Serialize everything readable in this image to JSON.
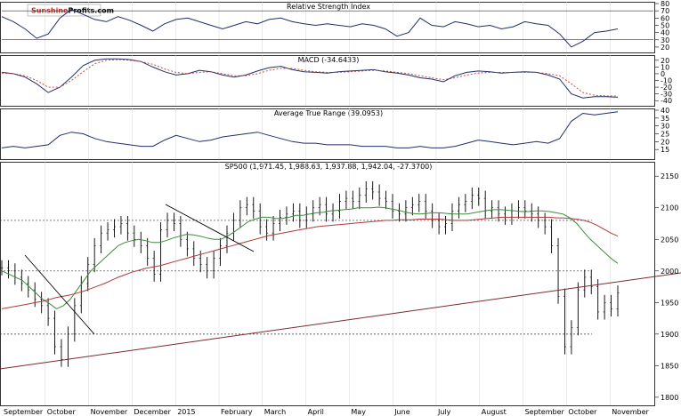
{
  "logo": {
    "part1": "Sunshine",
    "part2": "Profits.com"
  },
  "months": [
    "September",
    "October",
    "November",
    "December",
    "2015",
    "February",
    "March",
    "April",
    "May",
    "June",
    "July",
    "August",
    "September",
    "October",
    "November"
  ],
  "chart_data": [
    {
      "type": "line",
      "title": "Relative Strength Index",
      "ylim": [
        15,
        80
      ],
      "y_ticks": [
        20,
        30,
        40,
        50,
        60,
        70,
        80
      ],
      "reference_lines": [
        30,
        70
      ],
      "series": [
        {
          "values": [
            62,
            55,
            45,
            32,
            38,
            60,
            72,
            65,
            58,
            55,
            62,
            57,
            50,
            42,
            52,
            58,
            60,
            55,
            50,
            45,
            50,
            55,
            52,
            58,
            60,
            55,
            52,
            50,
            52,
            50,
            48,
            52,
            50,
            45,
            35,
            40,
            60,
            50,
            48,
            55,
            52,
            48,
            50,
            45,
            48,
            55,
            52,
            50,
            38,
            20,
            28,
            40,
            42,
            45
          ]
        }
      ]
    },
    {
      "type": "line",
      "title": "MACD (-34.6433)",
      "ylim": [
        -45,
        25
      ],
      "y_ticks": [
        -40,
        -30,
        -20,
        -10,
        0,
        10,
        20
      ],
      "series": [
        {
          "values": [
            2,
            0,
            -5,
            -15,
            -28,
            -20,
            -5,
            12,
            20,
            22,
            22,
            21,
            18,
            10,
            3,
            -2,
            0,
            5,
            3,
            -2,
            -5,
            -2,
            4,
            9,
            11,
            6,
            3,
            2,
            1,
            3,
            4,
            5,
            6,
            3,
            1,
            -2,
            -6,
            -8,
            -12,
            -3,
            2,
            4,
            3,
            1,
            2,
            3,
            2,
            -2,
            -8,
            -30,
            -36,
            -34,
            -34,
            -35
          ]
        },
        {
          "values": [
            1,
            0,
            -3,
            -10,
            -20,
            -20,
            -10,
            3,
            15,
            20,
            21,
            20,
            18,
            14,
            7,
            2,
            0,
            2,
            3,
            0,
            -3,
            -3,
            0,
            5,
            8,
            8,
            5,
            3,
            2,
            2,
            3,
            4,
            5,
            4,
            2,
            0,
            -3,
            -6,
            -9,
            -6,
            -2,
            1,
            2,
            2,
            2,
            2,
            2,
            0,
            -3,
            -15,
            -28,
            -32,
            -33,
            -33
          ]
        }
      ]
    },
    {
      "type": "line",
      "title": "Average True Range (39.0953)",
      "ylim": [
        10,
        40
      ],
      "y_ticks": [
        15,
        20,
        25,
        30,
        35,
        40
      ],
      "series": [
        {
          "values": [
            16,
            17,
            16,
            17,
            18,
            24,
            26,
            25,
            22,
            20,
            19,
            18,
            17,
            17,
            21,
            24,
            22,
            20,
            21,
            23,
            24,
            25,
            26,
            24,
            22,
            20,
            19,
            19,
            18,
            18,
            18,
            17,
            17,
            17,
            16,
            16,
            17,
            16,
            16,
            17,
            19,
            21,
            20,
            19,
            18,
            19,
            20,
            19,
            22,
            33,
            38,
            37,
            38,
            39
          ]
        }
      ]
    },
    {
      "type": "bar",
      "title": "SP500 (1,971.45, 1,988.63, 1,937.88, 1,942.04, -27.3700)",
      "ylim": [
        1790,
        2170
      ],
      "y_ticks": [
        1800,
        1850,
        1900,
        1950,
        2000,
        2050,
        2100,
        2150
      ],
      "horizontal_levels": [
        2080,
        2000,
        1900
      ],
      "price": [
        2005,
        2000,
        1990,
        1980,
        1970,
        1955,
        1945,
        1925,
        1880,
        1860,
        1900,
        1945,
        1980,
        2010,
        2040,
        2060,
        2065,
        2070,
        2075,
        2060,
        2050,
        2040,
        2020,
        1995,
        2065,
        2080,
        2075,
        2050,
        2035,
        2020,
        2010,
        2000,
        2020,
        2040,
        2060,
        2080,
        2100,
        2105,
        2095,
        2070,
        2060,
        2075,
        2085,
        2090,
        2095,
        2080,
        2090,
        2100,
        2105,
        2090,
        2095,
        2110,
        2115,
        2110,
        2120,
        2130,
        2125,
        2115,
        2110,
        2095,
        2090,
        2100,
        2105,
        2110,
        2095,
        2080,
        2070,
        2075,
        2095,
        2105,
        2110,
        2120,
        2115,
        2095,
        2100,
        2090,
        2085,
        2095,
        2100,
        2095,
        2090,
        2080,
        2070,
        2040,
        1960,
        1880,
        1910,
        1970,
        1990,
        1975,
        1935,
        1950,
        1940,
        1965
      ],
      "ma50": [
        2000,
        1995,
        1990,
        1985,
        1975,
        1965,
        1955,
        1948,
        1940,
        1945,
        1955,
        1970,
        1985,
        2000,
        2010,
        2020,
        2030,
        2040,
        2045,
        2048,
        2050,
        2048,
        2045,
        2045,
        2048,
        2052,
        2055,
        2058,
        2057,
        2055,
        2052,
        2050,
        2050,
        2055,
        2062,
        2070,
        2078,
        2082,
        2085,
        2085,
        2083,
        2083,
        2085,
        2088,
        2088,
        2090,
        2092,
        2093,
        2095,
        2096,
        2097,
        2098,
        2100,
        2100,
        2100,
        2101,
        2100,
        2098,
        2096,
        2093,
        2091,
        2090,
        2091,
        2092,
        2092,
        2091,
        2090,
        2090,
        2090,
        2092,
        2094,
        2096,
        2097,
        2097,
        2096,
        2095,
        2094,
        2094,
        2095,
        2095,
        2094,
        2092,
        2090,
        2084,
        2075,
        2062,
        2050,
        2040,
        2030,
        2020,
        2012
      ],
      "ma200": [
        1940,
        1942,
        1944,
        1946,
        1948,
        1950,
        1952,
        1955,
        1958,
        1960,
        1962,
        1965,
        1968,
        1972,
        1976,
        1980,
        1985,
        1990,
        1994,
        1998,
        2001,
        2004,
        2006,
        2008,
        2011,
        2014,
        2017,
        2020,
        2023,
        2026,
        2029,
        2032,
        2035,
        2038,
        2041,
        2044,
        2047,
        2050,
        2053,
        2056,
        2058,
        2060,
        2062,
        2064,
        2066,
        2068,
        2070,
        2071,
        2072,
        2073,
        2074,
        2075,
        2076,
        2077,
        2078,
        2079,
        2080,
        2080,
        2081,
        2081,
        2081,
        2082,
        2082,
        2082,
        2082,
        2081,
        2080,
        2080,
        2080,
        2081,
        2082,
        2083,
        2084,
        2085,
        2085,
        2085,
        2085,
        2085,
        2085,
        2085,
        2085,
        2084,
        2084,
        2083,
        2082,
        2080,
        2077,
        2072,
        2066,
        2060,
        2055
      ]
    }
  ]
}
